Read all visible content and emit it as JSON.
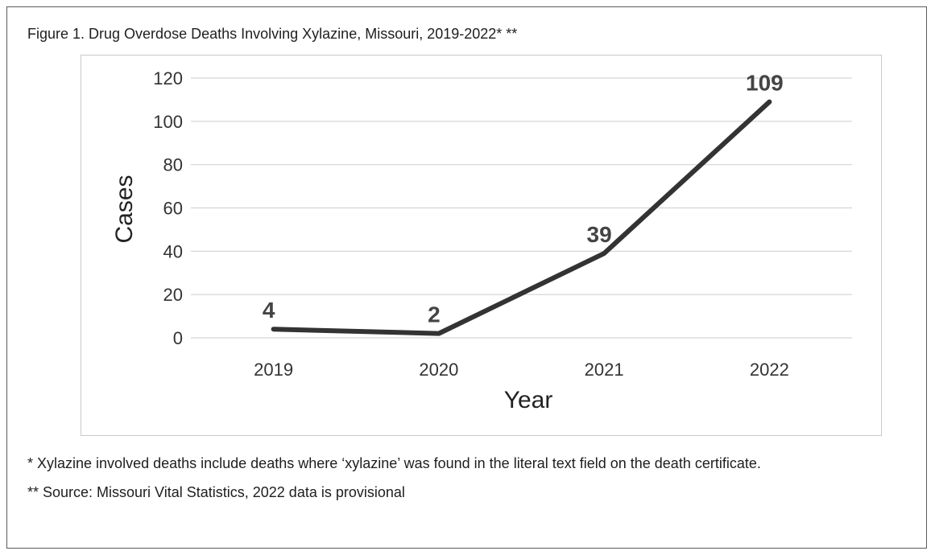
{
  "figure_title": "Figure 1. Drug Overdose Deaths Involving Xylazine, Missouri, 2019-2022* **",
  "chart_data": {
    "type": "line",
    "title": "Figure 1. Drug Overdose Deaths Involving Xylazine, Missouri, 2019-2022* **",
    "categories": [
      "2019",
      "2020",
      "2021",
      "2022"
    ],
    "series": [
      {
        "values": [
          4,
          2,
          39,
          109
        ],
        "data_labels": [
          "4",
          "2",
          "39",
          "109"
        ]
      }
    ],
    "xlabel": "Year",
    "ylabel": "Cases",
    "ylim": [
      0,
      120
    ],
    "yticks": [
      "0",
      "20",
      "40",
      "60",
      "80",
      "100",
      "120"
    ],
    "grid": true,
    "legend": "none",
    "line_color": "#333333",
    "grid_color": "#d3d3d3"
  },
  "notes": {
    "footnote1": "* Xylazine involved deaths include deaths where ‘xylazine’ was found in the literal text field on the death certificate.",
    "footnote2": "** Source: Missouri Vital Statistics, 2022 data is provisional"
  }
}
